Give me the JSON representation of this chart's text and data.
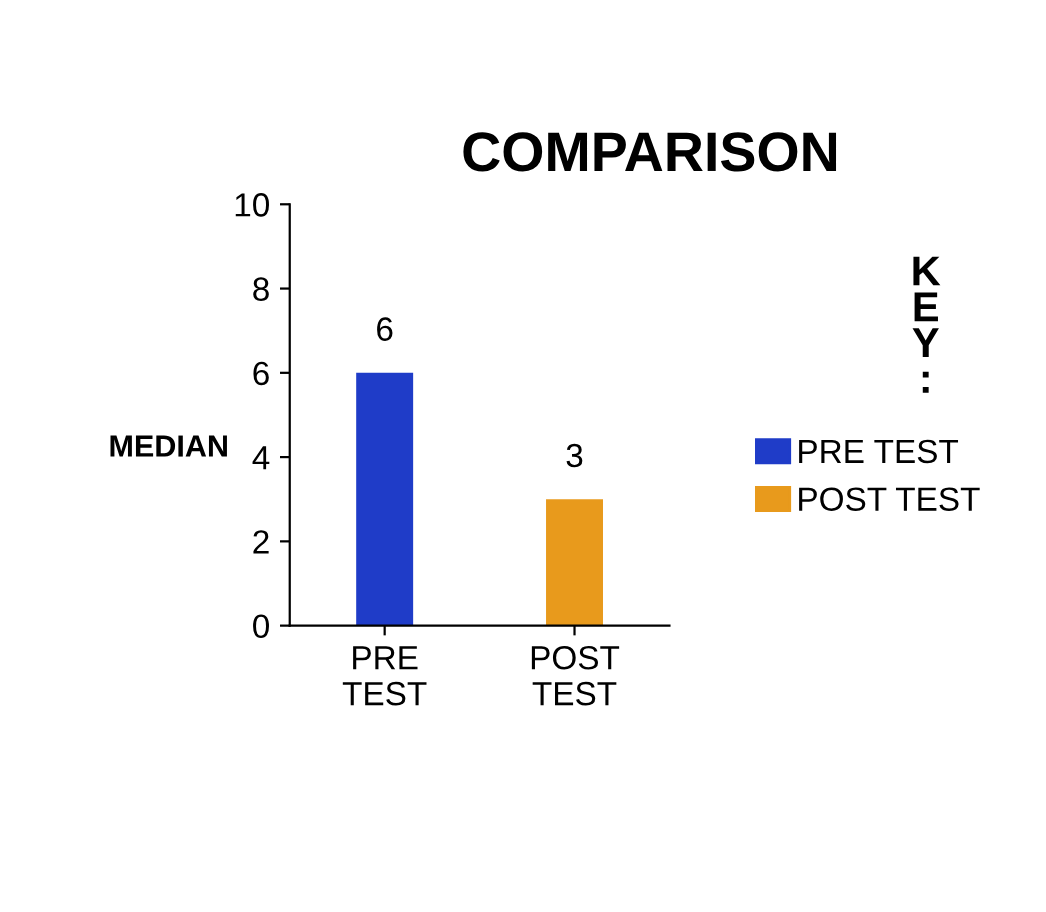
{
  "chart_data": {
    "type": "bar",
    "title": "COMPARISON",
    "ylabel": "MEDIAN",
    "categories": [
      "PRE TEST",
      "POST TEST"
    ],
    "series": [
      {
        "name": "PRE TEST",
        "color": "#1f3cc8",
        "values": [
          6,
          null
        ]
      },
      {
        "name": "POST TEST",
        "color": "#e89a1c",
        "values": [
          null,
          3
        ]
      }
    ],
    "ylim": [
      0,
      10
    ],
    "yticks": [
      0,
      2,
      4,
      6,
      8,
      10
    ],
    "grid": false,
    "legend": "right",
    "data_labels": true,
    "annotations": [
      "KEY:"
    ]
  }
}
